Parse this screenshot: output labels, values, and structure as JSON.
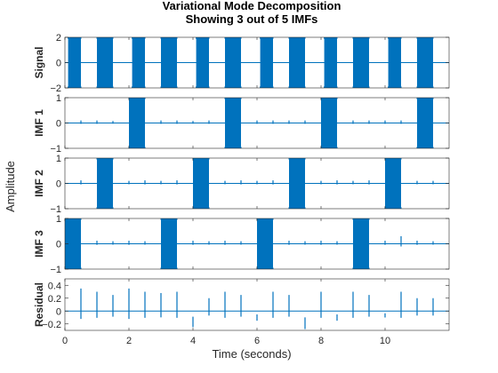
{
  "chart_data": {
    "type": "line",
    "title": "Variational Mode Decomposition",
    "subtitle": "Showing 3 out of 5 IMFs",
    "xlabel": "Time (seconds)",
    "ylabel": "Amplitude",
    "xlim": [
      0,
      12
    ],
    "xticks": [
      0,
      2,
      4,
      6,
      8,
      10
    ],
    "line_color": "#0072BD",
    "grid": false,
    "panels": [
      {
        "name": "Signal",
        "ylim": [
          -2,
          2
        ],
        "yticks": [
          -2,
          0,
          2
        ],
        "bursts": [
          [
            0.1,
            0.5
          ],
          [
            1.0,
            1.5
          ],
          [
            2.1,
            2.5
          ],
          [
            3.0,
            3.5
          ],
          [
            4.1,
            4.5
          ],
          [
            5.0,
            5.5
          ],
          [
            6.1,
            6.5
          ],
          [
            7.0,
            7.5
          ],
          [
            8.1,
            8.5
          ],
          [
            9.0,
            9.5
          ],
          [
            10.1,
            10.5
          ],
          [
            11.0,
            11.5
          ]
        ],
        "burst_amplitude": 2.0,
        "spikes": []
      },
      {
        "name": "IMF 1",
        "ylim": [
          -1,
          1
        ],
        "yticks": [
          -1,
          0,
          1
        ],
        "bursts": [
          [
            2.0,
            2.5
          ],
          [
            5.0,
            5.5
          ],
          [
            8.0,
            8.5
          ],
          [
            11.0,
            11.5
          ]
        ],
        "burst_amplitude": 1.0,
        "spikes": [
          [
            0.5,
            0.1
          ],
          [
            1.0,
            0.1
          ],
          [
            1.5,
            0.08
          ],
          [
            3.0,
            0.1
          ],
          [
            3.5,
            0.1
          ],
          [
            4.0,
            0.08
          ],
          [
            4.5,
            0.1
          ],
          [
            6.0,
            0.1
          ],
          [
            6.5,
            0.1
          ],
          [
            7.0,
            0.1
          ],
          [
            7.5,
            0.1
          ],
          [
            9.0,
            0.1
          ],
          [
            9.5,
            0.1
          ],
          [
            10.0,
            0.1
          ],
          [
            10.5,
            0.1
          ]
        ]
      },
      {
        "name": "IMF 2",
        "ylim": [
          -1,
          1
        ],
        "yticks": [
          -1,
          0,
          1
        ],
        "bursts": [
          [
            1.0,
            1.5
          ],
          [
            4.0,
            4.5
          ],
          [
            7.0,
            7.5
          ],
          [
            10.0,
            10.5
          ]
        ],
        "burst_amplitude": 1.0,
        "spikes": [
          [
            0.5,
            0.12
          ],
          [
            2.0,
            0.1
          ],
          [
            2.5,
            0.12
          ],
          [
            3.0,
            0.1
          ],
          [
            3.5,
            0.12
          ],
          [
            5.0,
            0.1
          ],
          [
            5.5,
            0.12
          ],
          [
            6.0,
            0.1
          ],
          [
            6.5,
            0.12
          ],
          [
            8.0,
            0.1
          ],
          [
            8.5,
            0.12
          ],
          [
            9.0,
            0.1
          ],
          [
            9.5,
            0.12
          ],
          [
            11.0,
            0.1
          ],
          [
            11.5,
            0.1
          ]
        ]
      },
      {
        "name": "IMF 3",
        "ylim": [
          -1,
          1
        ],
        "yticks": [
          -1,
          0,
          1
        ],
        "bursts": [
          [
            0.0,
            0.5
          ],
          [
            3.0,
            3.5
          ],
          [
            6.0,
            6.5
          ],
          [
            9.0,
            9.5
          ]
        ],
        "burst_amplitude": 1.0,
        "spikes": [
          [
            1.0,
            0.12
          ],
          [
            1.5,
            0.1
          ],
          [
            2.0,
            0.12
          ],
          [
            2.5,
            0.1
          ],
          [
            4.0,
            0.12
          ],
          [
            4.5,
            0.1
          ],
          [
            5.0,
            0.12
          ],
          [
            5.5,
            0.1
          ],
          [
            7.0,
            0.12
          ],
          [
            7.5,
            0.1
          ],
          [
            8.0,
            0.12
          ],
          [
            8.5,
            0.1
          ],
          [
            10.0,
            0.12
          ],
          [
            10.5,
            0.3
          ],
          [
            11.0,
            0.12
          ],
          [
            11.5,
            0.1
          ]
        ]
      },
      {
        "name": "Residual",
        "ylim": [
          -0.3,
          0.5
        ],
        "yticks": [
          -0.2,
          0,
          0.2,
          0.4
        ],
        "bursts": [],
        "burst_amplitude": 0,
        "spikes": [
          [
            0.5,
            0.35
          ],
          [
            1.0,
            0.3
          ],
          [
            1.5,
            0.25
          ],
          [
            2.0,
            0.35
          ],
          [
            2.5,
            0.3
          ],
          [
            3.0,
            0.28
          ],
          [
            3.5,
            0.3
          ],
          [
            4.0,
            -0.25
          ],
          [
            4.5,
            0.2
          ],
          [
            5.0,
            0.3
          ],
          [
            5.5,
            0.25
          ],
          [
            6.0,
            -0.15
          ],
          [
            6.5,
            0.3
          ],
          [
            7.0,
            0.25
          ],
          [
            7.5,
            -0.28
          ],
          [
            8.0,
            0.3
          ],
          [
            8.5,
            -0.15
          ],
          [
            9.0,
            0.3
          ],
          [
            9.5,
            0.25
          ],
          [
            10.0,
            -0.1
          ],
          [
            10.5,
            0.3
          ],
          [
            11.0,
            0.2
          ],
          [
            11.5,
            0.2
          ]
        ]
      }
    ]
  }
}
